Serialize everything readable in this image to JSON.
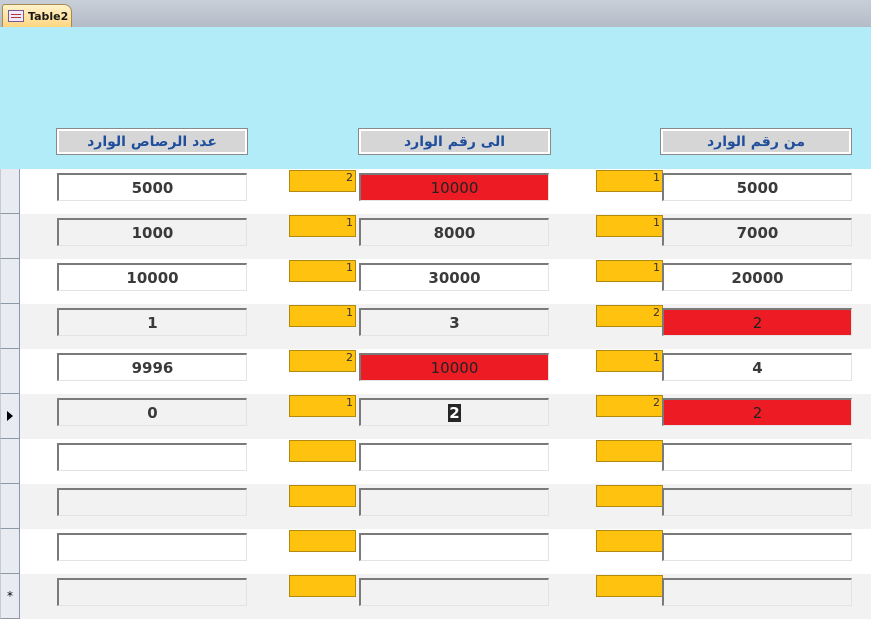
{
  "tab": {
    "title": "Table2",
    "icon": "table-form-icon"
  },
  "headers": {
    "from_number": "من رقم الوارد",
    "to_number": "الى رقم الوارد",
    "bullets_count": "عدد الرصاص الوارد"
  },
  "colors": {
    "header_bg": "#b3ecf9",
    "badge": "#ffc20e",
    "highlight_red": "#ed1c24",
    "header_text": "#1f4e9c"
  },
  "new_record_marker": "*",
  "rows": [
    {
      "from": "5000",
      "from_badge": "1",
      "from_red": false,
      "to": "10000",
      "to_badge": "2",
      "to_red": true,
      "to_selected": false,
      "count": "5000"
    },
    {
      "from": "7000",
      "from_badge": "1",
      "from_red": false,
      "to": "8000",
      "to_badge": "1",
      "to_red": false,
      "to_selected": false,
      "count": "1000"
    },
    {
      "from": "20000",
      "from_badge": "1",
      "from_red": false,
      "to": "30000",
      "to_badge": "1",
      "to_red": false,
      "to_selected": false,
      "count": "10000"
    },
    {
      "from": "2",
      "from_badge": "2",
      "from_red": true,
      "to": "3",
      "to_badge": "1",
      "to_red": false,
      "to_selected": false,
      "count": "1"
    },
    {
      "from": "4",
      "from_badge": "1",
      "from_red": false,
      "to": "10000",
      "to_badge": "2",
      "to_red": true,
      "to_selected": false,
      "count": "9996"
    },
    {
      "from": "2",
      "from_badge": "2",
      "from_red": true,
      "to": "2",
      "to_badge": "1",
      "to_red": false,
      "to_selected": true,
      "count": "0",
      "current": true
    },
    {
      "from": "",
      "from_badge": "",
      "from_red": false,
      "to": "",
      "to_badge": "",
      "to_red": false,
      "to_selected": false,
      "count": ""
    },
    {
      "from": "",
      "from_badge": "",
      "from_red": false,
      "to": "",
      "to_badge": "",
      "to_red": false,
      "to_selected": false,
      "count": ""
    },
    {
      "from": "",
      "from_badge": "",
      "from_red": false,
      "to": "",
      "to_badge": "",
      "to_red": false,
      "to_selected": false,
      "count": ""
    },
    {
      "from": "",
      "from_badge": "",
      "from_red": false,
      "to": "",
      "to_badge": "",
      "to_red": false,
      "to_selected": false,
      "count": "",
      "new_record": true
    }
  ]
}
